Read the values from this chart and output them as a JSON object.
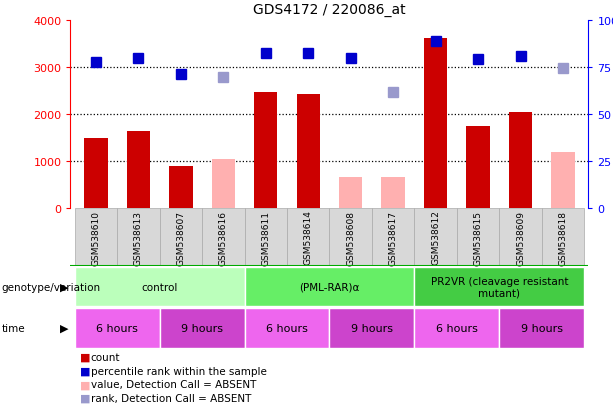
{
  "title": "GDS4172 / 220086_at",
  "samples": [
    "GSM538610",
    "GSM538613",
    "GSM538607",
    "GSM538616",
    "GSM538611",
    "GSM538614",
    "GSM538608",
    "GSM538617",
    "GSM538612",
    "GSM538615",
    "GSM538609",
    "GSM538618"
  ],
  "bar_heights": [
    1480,
    1640,
    900,
    null,
    2460,
    2420,
    null,
    null,
    3620,
    1750,
    2050,
    null
  ],
  "bar_heights_absent": [
    null,
    null,
    null,
    1050,
    null,
    null,
    650,
    650,
    null,
    null,
    null,
    1200
  ],
  "rank_present": [
    3100,
    3180,
    2840,
    null,
    3290,
    3300,
    3180,
    null,
    3550,
    3170,
    3230,
    null
  ],
  "rank_absent": [
    null,
    null,
    null,
    2780,
    null,
    null,
    null,
    2470,
    null,
    null,
    null,
    2980
  ],
  "bar_color_present": "#cc0000",
  "bar_color_absent": "#ffb0b0",
  "rank_color_present": "#0000cc",
  "rank_color_absent": "#9999cc",
  "ylim_left": [
    0,
    4000
  ],
  "ylim_right": [
    0,
    100
  ],
  "yticks_left": [
    0,
    1000,
    2000,
    3000,
    4000
  ],
  "yticks_right": [
    0,
    25,
    50,
    75,
    100
  ],
  "grid_lines": [
    1000,
    2000,
    3000
  ],
  "genotype_groups": [
    {
      "label": "control",
      "spans": [
        0,
        4
      ],
      "color": "#bbffbb"
    },
    {
      "label": "(PML-RAR)α",
      "spans": [
        4,
        8
      ],
      "color": "#66ee66"
    },
    {
      "label": "PR2VR (cleavage resistant\nmutant)",
      "spans": [
        8,
        12
      ],
      "color": "#44cc44"
    }
  ],
  "time_groups": [
    {
      "label": "6 hours",
      "spans": [
        0,
        2
      ],
      "color": "#ee66ee"
    },
    {
      "label": "9 hours",
      "spans": [
        2,
        4
      ],
      "color": "#cc44cc"
    },
    {
      "label": "6 hours",
      "spans": [
        4,
        6
      ],
      "color": "#ee66ee"
    },
    {
      "label": "9 hours",
      "spans": [
        6,
        8
      ],
      "color": "#cc44cc"
    },
    {
      "label": "6 hours",
      "spans": [
        8,
        10
      ],
      "color": "#ee66ee"
    },
    {
      "label": "9 hours",
      "spans": [
        10,
        12
      ],
      "color": "#cc44cc"
    }
  ],
  "genotype_label": "genotype/variation",
  "time_label": "time",
  "legend_items": [
    {
      "label": "count",
      "color": "#cc0000",
      "marker": "s"
    },
    {
      "label": "percentile rank within the sample",
      "color": "#0000cc",
      "marker": "s"
    },
    {
      "label": "value, Detection Call = ABSENT",
      "color": "#ffb0b0",
      "marker": "s"
    },
    {
      "label": "rank, Detection Call = ABSENT",
      "color": "#9999cc",
      "marker": "s"
    }
  ],
  "bar_width": 0.55,
  "marker_size": 7,
  "xtick_bg": "#d8d8d8",
  "xtick_border": "#aaaaaa"
}
